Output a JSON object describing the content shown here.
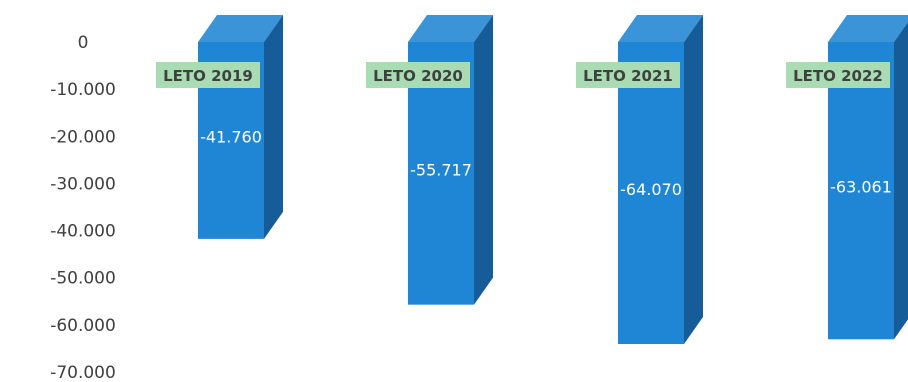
{
  "chart_data": {
    "type": "bar",
    "categories": [
      "LETO 2019",
      "LETO 2020",
      "LETO 2021",
      "LETO 2022"
    ],
    "values": [
      -41760,
      -55717,
      -64070,
      -63061
    ],
    "data_labels": [
      "-41.760",
      "-55.717",
      "-64.070",
      "-63.061"
    ],
    "y_ticks": [
      {
        "value": 0,
        "label": "0"
      },
      {
        "value": -10000,
        "label": "-10.000"
      },
      {
        "value": -20000,
        "label": "-20.000"
      },
      {
        "value": -30000,
        "label": "-30.000"
      },
      {
        "value": -40000,
        "label": "-40.000"
      },
      {
        "value": -50000,
        "label": "-50.000"
      },
      {
        "value": -60000,
        "label": "-60.000"
      },
      {
        "value": -70000,
        "label": "-70.000"
      }
    ],
    "ylim": [
      -70000,
      0
    ],
    "grid": false,
    "legend": "none",
    "style": "3d-column",
    "colors": {
      "bar_front": "#1f86d6",
      "bar_side": "#155c98",
      "bar_top": "#3b94d8",
      "category_label_bg": "#a9dcb3",
      "tick_text": "#404040",
      "data_label_text": "#ffffff"
    }
  }
}
